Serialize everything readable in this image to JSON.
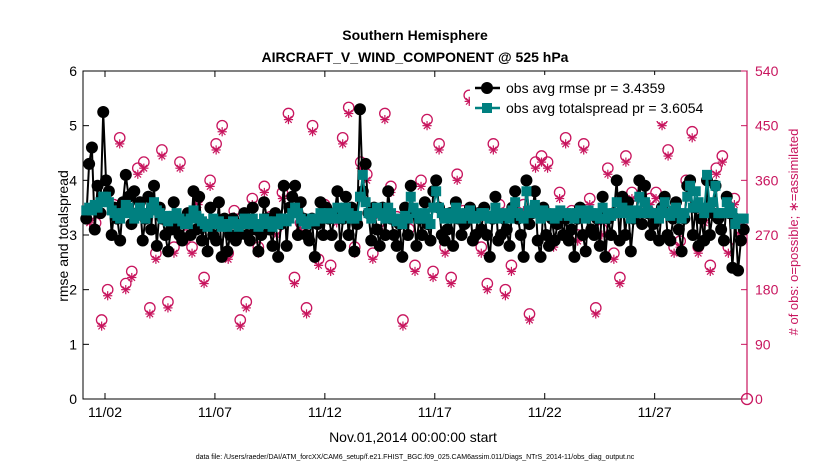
{
  "chart_data": {
    "type": "line",
    "title": "Southern Hemisphere",
    "subtitle": "AIRCRAFT_V_WIND_COMPONENT @ 525 hPa",
    "xlabel": "Nov.01,2014 00:00:00 start",
    "ylabel": "rmse and totalspread",
    "y2label": "# of obs: o=possible; ∗=assimilated",
    "footnote": "data file: /Users/raeder/DAI/ATM_forcXX/CAM6_setup/f.e21.FHIST_BGC.f09_025.CAM6assim.011/Diags_NTrS_2014-11/obs_diag_output.nc",
    "xlim": [
      0.75,
      30.95
    ],
    "x_ticks": [
      1.75,
      6.75,
      11.75,
      16.75,
      21.75,
      26.75
    ],
    "x_tick_labels": [
      "11/02",
      "11/07",
      "11/12",
      "11/17",
      "11/22",
      "11/27"
    ],
    "ylim": [
      0,
      6
    ],
    "y_ticks": [
      0,
      1,
      2,
      3,
      4,
      5,
      6
    ],
    "y_tick_labels": [
      "0",
      "1",
      "2",
      "3",
      "4",
      "5",
      "6"
    ],
    "y2lim": [
      0,
      540
    ],
    "y2_ticks": [
      0,
      90,
      180,
      270,
      360,
      450,
      540
    ],
    "y2_tick_labels": [
      "0",
      "90",
      "180",
      "270",
      "360",
      "450",
      "540"
    ],
    "legend_position": "top-right",
    "colors": {
      "rmse": "#000000",
      "spread": "#008080",
      "obs": "#c8155e"
    },
    "series": [
      {
        "name": "obs avg rmse pr = 3.4359",
        "axis": "left",
        "values": [
          3.3,
          4.3,
          4.6,
          3.1,
          3.9,
          3.4,
          5.25,
          4.0,
          3.8,
          3.0,
          3.5,
          3.3,
          2.9,
          3.6,
          4.1,
          3.7,
          3.2,
          3.8,
          3.4,
          3.6,
          2.9,
          3.3,
          3.7,
          3.1,
          3.9,
          2.8,
          3.5,
          3.3,
          3.0,
          2.7,
          3.1,
          3.6,
          3.2,
          3.0,
          2.9,
          3.3,
          3.4,
          3.0,
          3.8,
          3.1,
          3.7,
          2.9,
          3.2,
          2.7,
          3.5,
          3.0,
          2.9,
          3.6,
          2.6,
          3.3,
          2.7,
          3.0,
          3.3,
          2.9,
          3.0,
          3.2,
          3.4,
          3.0,
          2.9,
          3.5,
          3.1,
          2.7,
          3.0,
          3.6,
          3.3,
          3.1,
          2.8,
          3.4,
          2.6,
          3.2,
          3.9,
          2.8,
          3.5,
          3.7,
          3.9,
          3.0,
          3.6,
          3.3,
          3.0,
          2.9,
          3.3,
          2.6,
          3.2,
          3.6,
          3.0,
          3.5,
          3.3,
          3.0,
          3.4,
          3.8,
          2.8,
          3.3,
          3.7,
          3.0,
          3.5,
          2.7,
          3.2,
          5.3,
          3.8,
          4.3,
          3.4,
          2.9,
          3.5,
          3.1,
          2.8,
          3.5,
          3.0,
          3.8,
          3.3,
          3.0,
          2.8,
          3.2,
          2.6,
          3.5,
          3.0,
          3.9,
          3.4,
          2.8,
          3.3,
          3.0,
          3.6,
          3.2,
          2.9,
          3.8,
          4.0,
          3.5,
          3.0,
          2.9,
          3.1,
          3.4,
          2.8,
          3.6,
          3.3,
          3.0,
          3.2,
          3.3,
          3.5,
          2.9,
          3.0,
          3.4,
          3.1,
          3.5,
          3.0,
          2.6,
          3.3,
          3.7,
          2.9,
          3.0,
          3.3,
          3.1,
          2.8,
          3.5,
          3.8,
          3.3,
          3.0,
          2.6,
          4.0,
          3.2,
          3.4,
          3.8,
          2.9,
          2.6,
          3.5,
          3.0,
          2.8,
          3.3,
          2.9,
          3.2,
          3.4,
          3.0,
          3.3,
          2.9,
          3.1,
          2.6,
          3.3,
          3.5,
          3.0,
          2.7,
          3.4,
          3.1,
          3.0,
          3.3,
          2.8,
          3.7,
          2.6,
          3.3,
          3.0,
          3.4,
          4.0,
          2.9,
          3.7,
          3.0,
          3.6,
          2.7,
          3.3,
          3.4,
          4.0,
          3.2,
          3.9,
          3.4,
          3.0,
          3.2,
          3.3,
          2.9,
          3.5,
          3.7,
          3.0,
          2.9,
          3.3,
          3.6,
          3.1,
          2.7,
          3.3,
          3.9,
          4.0,
          3.0,
          3.5,
          2.8,
          3.3,
          2.9,
          4.0,
          3.0,
          3.4,
          3.9,
          3.3,
          3.1,
          2.9,
          3.7,
          3.4,
          2.4,
          3.3,
          2.35,
          2.9,
          3.1
        ]
      },
      {
        "name": "obs avg totalspread pr = 3.6054",
        "axis": "left",
        "values": [
          3.45,
          3.5,
          3.45,
          3.55,
          3.5,
          3.6,
          3.7,
          3.7,
          3.6,
          3.45,
          3.4,
          3.35,
          3.3,
          3.4,
          3.55,
          3.5,
          3.4,
          3.3,
          3.35,
          3.5,
          3.4,
          3.3,
          3.4,
          3.5,
          3.6,
          3.45,
          3.4,
          3.3,
          3.35,
          3.25,
          3.3,
          3.35,
          3.4,
          3.3,
          3.25,
          3.2,
          3.2,
          3.3,
          3.45,
          3.35,
          3.3,
          3.25,
          3.2,
          3.15,
          3.2,
          3.3,
          3.2,
          3.25,
          3.15,
          3.2,
          3.15,
          3.2,
          3.25,
          3.2,
          3.15,
          3.2,
          3.3,
          3.2,
          3.25,
          3.3,
          3.2,
          3.15,
          3.2,
          3.3,
          3.25,
          3.2,
          3.15,
          3.25,
          3.2,
          3.3,
          3.3,
          3.25,
          3.3,
          3.4,
          3.5,
          3.4,
          3.3,
          3.25,
          3.2,
          3.25,
          3.3,
          3.25,
          3.3,
          3.4,
          3.35,
          3.3,
          3.4,
          3.35,
          3.3,
          3.5,
          3.3,
          3.35,
          3.5,
          3.4,
          3.3,
          3.3,
          3.35,
          3.7,
          4.1,
          3.6,
          3.4,
          3.3,
          3.4,
          3.5,
          3.4,
          3.35,
          3.3,
          3.5,
          3.4,
          3.3,
          3.25,
          3.3,
          3.2,
          3.35,
          3.3,
          3.7,
          3.5,
          3.4,
          3.3,
          3.3,
          3.4,
          3.3,
          3.2,
          3.5,
          3.8,
          3.5,
          3.4,
          3.3,
          3.3,
          3.4,
          3.3,
          3.5,
          3.4,
          3.3,
          3.35,
          3.4,
          3.45,
          3.3,
          3.3,
          3.35,
          3.4,
          3.4,
          3.35,
          3.3,
          3.35,
          3.5,
          3.3,
          3.35,
          3.4,
          3.35,
          3.3,
          3.45,
          3.6,
          3.4,
          3.35,
          3.3,
          3.8,
          3.45,
          3.4,
          3.55,
          3.4,
          3.3,
          3.45,
          3.4,
          3.35,
          3.4,
          3.3,
          3.35,
          3.45,
          3.4,
          3.4,
          3.35,
          3.4,
          3.3,
          3.4,
          3.45,
          3.4,
          3.3,
          3.45,
          3.4,
          3.35,
          3.4,
          3.3,
          3.5,
          3.3,
          3.4,
          3.35,
          3.4,
          3.6,
          3.4,
          3.5,
          3.4,
          3.45,
          3.3,
          3.4,
          3.45,
          3.7,
          3.4,
          3.6,
          3.45,
          3.4,
          3.4,
          3.4,
          3.3,
          3.45,
          3.6,
          3.4,
          3.35,
          3.45,
          3.5,
          3.4,
          3.3,
          3.4,
          3.7,
          3.9,
          3.5,
          3.8,
          3.6,
          3.5,
          3.4,
          4.1,
          3.5,
          3.6,
          3.9,
          3.4,
          3.4,
          3.4,
          3.6,
          3.5,
          3.4,
          3.2,
          3.3,
          3.3,
          3.3
        ]
      },
      {
        "name": "obs possible",
        "axis": "right",
        "marker": "o",
        "values": [
          300,
          290,
          130,
          180,
          320,
          430,
          190,
          210,
          380,
          390,
          150,
          240,
          410,
          160,
          250,
          390,
          270,
          250,
          330,
          200,
          360,
          420,
          450,
          240,
          310,
          130,
          160,
          330,
          250,
          350,
          300,
          280,
          340,
          470,
          200,
          290,
          150,
          450,
          230,
          320,
          220,
          300,
          430,
          480,
          250,
          390,
          370,
          240,
          290,
          470,
          350,
          300,
          130,
          280,
          220,
          360,
          460,
          210,
          420,
          250,
          200,
          370,
          310,
          500,
          490,
          250,
          190,
          420,
          320,
          180,
          220,
          480,
          320,
          140,
          390,
          400,
          390,
          260,
          340,
          430,
          310,
          270,
          420,
          330,
          150,
          280,
          380,
          240,
          200,
          400,
          340,
          490,
          480,
          330,
          340,
          460,
          410,
          250,
          260,
          360,
          440,
          250,
          300,
          220,
          380,
          400,
          250,
          330,
          280
        ]
      },
      {
        "name": "obs assimilated",
        "axis": "right",
        "marker": "*",
        "values": [
          290,
          280,
          120,
          170,
          310,
          420,
          180,
          200,
          370,
          380,
          140,
          230,
          400,
          150,
          240,
          380,
          260,
          240,
          320,
          190,
          350,
          410,
          440,
          230,
          300,
          120,
          150,
          320,
          240,
          340,
          290,
          270,
          330,
          460,
          190,
          280,
          140,
          440,
          220,
          310,
          210,
          290,
          420,
          470,
          240,
          380,
          360,
          230,
          280,
          460,
          340,
          290,
          120,
          270,
          210,
          350,
          450,
          200,
          410,
          240,
          190,
          360,
          300,
          490,
          480,
          240,
          180,
          410,
          310,
          170,
          210,
          470,
          310,
          130,
          380,
          390,
          380,
          250,
          330,
          420,
          300,
          260,
          410,
          320,
          140,
          270,
          370,
          230,
          190,
          390,
          330,
          480,
          470,
          320,
          330,
          450,
          400,
          240,
          250,
          350,
          430,
          240,
          290,
          210,
          370,
          390,
          240,
          320,
          270
        ]
      }
    ]
  }
}
